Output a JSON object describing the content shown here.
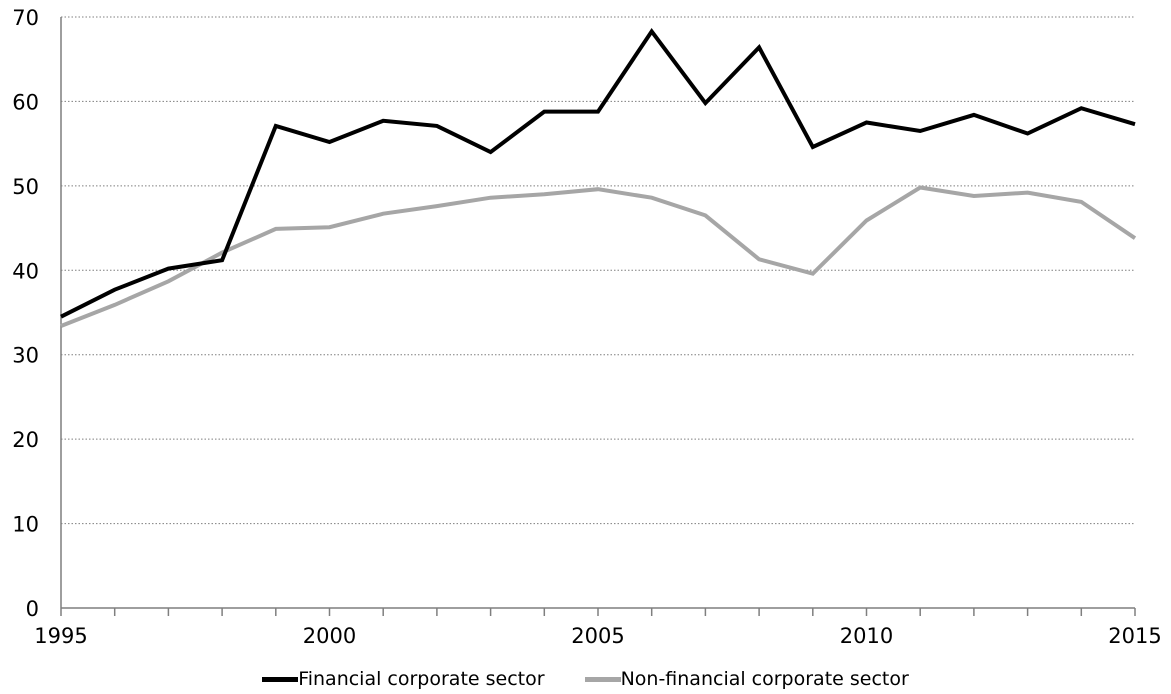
{
  "chart_data": {
    "type": "line",
    "title": "",
    "xlabel": "",
    "ylabel": "",
    "x": [
      1995,
      1996,
      1997,
      1998,
      1999,
      2000,
      2001,
      2002,
      2003,
      2004,
      2005,
      2006,
      2007,
      2008,
      2009,
      2010,
      2011,
      2012,
      2013,
      2014,
      2015
    ],
    "xlim": [
      1995,
      2015
    ],
    "ylim": [
      0,
      70
    ],
    "y_ticks": [
      "0",
      "10",
      "20",
      "30",
      "40",
      "50",
      "60",
      "70"
    ],
    "x_ticks": [
      "1995",
      "2000",
      "2005",
      "2010",
      "2015"
    ],
    "grid": "horizontal dotted",
    "legend_position": "bottom",
    "series": [
      {
        "name": "Financial corporate sector",
        "color": "#000000",
        "values": [
          34.5,
          37.7,
          40.2,
          41.2,
          57.1,
          55.2,
          57.7,
          57.1,
          54.0,
          58.8,
          58.8,
          68.3,
          59.8,
          66.4,
          54.6,
          57.5,
          56.5,
          58.4,
          56.2,
          59.2,
          57.3
        ]
      },
      {
        "name": "Non-financial corporate sector",
        "color": "#a6a6a6",
        "values": [
          33.4,
          35.9,
          38.7,
          42.1,
          44.9,
          45.1,
          46.7,
          47.6,
          48.6,
          49.0,
          49.6,
          48.6,
          46.5,
          41.3,
          39.6,
          45.9,
          49.8,
          48.8,
          49.2,
          48.1,
          43.8
        ]
      }
    ]
  }
}
